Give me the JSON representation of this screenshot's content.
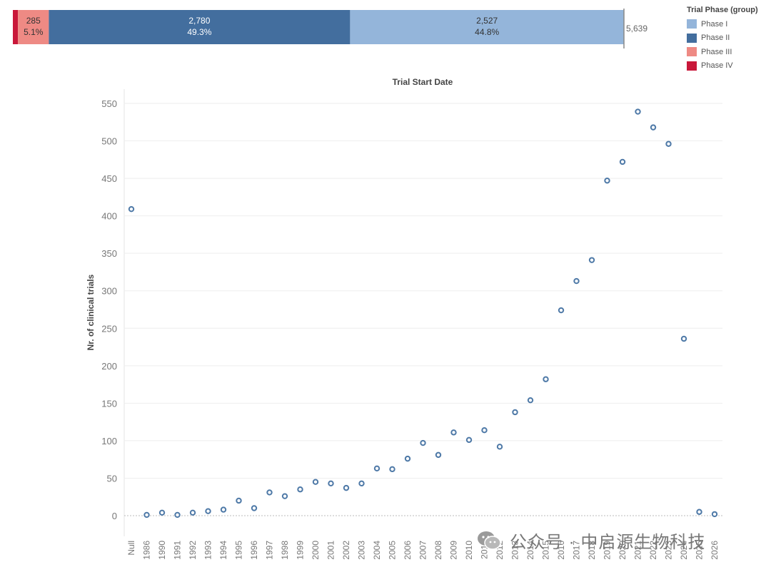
{
  "legend": {
    "title": "Trial Phase (group)",
    "items": [
      {
        "label": "Phase I",
        "color": "#94b5da"
      },
      {
        "label": "Phase II",
        "color": "#436e9e"
      },
      {
        "label": "Phase III",
        "color": "#ee8a84"
      },
      {
        "label": "Phase IV",
        "color": "#c9183a"
      }
    ]
  },
  "watermark": {
    "text": "公众号 · 中启源生物科技",
    "icon": "wechat-icon"
  },
  "chart_data": [
    {
      "type": "bar",
      "orientation": "horizontal-stacked",
      "total_label": "5,639",
      "total": 5639,
      "segments": [
        {
          "name": "Phase IV",
          "value": 47,
          "value_label": "",
          "pct_label": "",
          "color": "#c9183a"
        },
        {
          "name": "Phase III",
          "value": 285,
          "value_label": "285",
          "pct_label": "5.1%",
          "color": "#ee8a84"
        },
        {
          "name": "Phase II",
          "value": 2780,
          "value_label": "2,780",
          "pct_label": "49.3%",
          "color": "#436e9e"
        },
        {
          "name": "Phase I",
          "value": 2527,
          "value_label": "2,527",
          "pct_label": "44.8%",
          "color": "#94b5da"
        }
      ]
    },
    {
      "type": "scatter",
      "title": "Trial Start Date",
      "ylabel": "Nr. of clinical trials",
      "xlabel": "",
      "ylim": [
        0,
        550
      ],
      "yticks": [
        0,
        50,
        100,
        150,
        200,
        250,
        300,
        350,
        400,
        450,
        500,
        550
      ],
      "grid": true,
      "marker_color": "#4e79a7",
      "categories": [
        "Null",
        "1986",
        "1990",
        "1991",
        "1992",
        "1993",
        "1994",
        "1995",
        "1996",
        "1997",
        "1998",
        "1999",
        "2000",
        "2001",
        "2002",
        "2003",
        "2004",
        "2005",
        "2006",
        "2007",
        "2008",
        "2009",
        "2010",
        "2011",
        "2012",
        "2013",
        "2014",
        "2015",
        "2016",
        "2017",
        "2018",
        "2019",
        "2020",
        "2021",
        "2022",
        "2023",
        "2024",
        "2025",
        "2026"
      ],
      "values": [
        409,
        1,
        4,
        1,
        4,
        6,
        8,
        20,
        10,
        31,
        26,
        35,
        45,
        43,
        37,
        43,
        63,
        62,
        76,
        97,
        81,
        111,
        101,
        114,
        92,
        138,
        154,
        182,
        274,
        313,
        341,
        447,
        472,
        539,
        518,
        496,
        236,
        5,
        2
      ]
    }
  ]
}
